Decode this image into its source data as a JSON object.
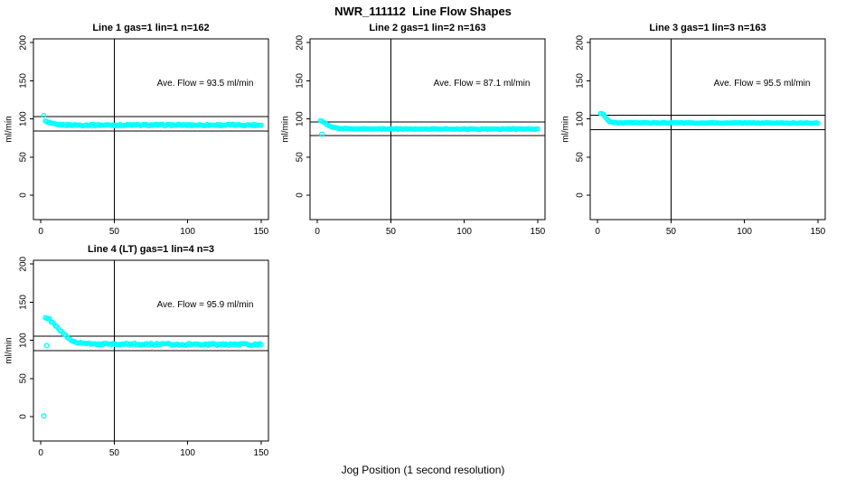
{
  "figure": {
    "title": "NWR_111112  Line Flow Shapes",
    "xlabel": "Jog Position (1 second resolution)"
  },
  "chart_data": [
    {
      "type": "scatter",
      "title": "Line 1 gas=1 lin=1 n=162",
      "line": 1,
      "gas": 1,
      "lin": 1,
      "n": 162,
      "annotation": "Ave. Flow =  93.5  ml/min",
      "ave_flow_ml_min": 93.5,
      "ylabel": "ml/min",
      "x_ticks": [
        0,
        50,
        100,
        150
      ],
      "y_ticks": [
        0,
        50,
        100,
        150,
        200
      ],
      "xlim": [
        -5,
        155
      ],
      "ylim": [
        -32,
        205
      ],
      "grid": false,
      "vline_x": 50,
      "hlines": [
        102.9,
        84.2
      ],
      "marker": "open-circle",
      "marker_color": "#00FFFF",
      "series_x_range": [
        2,
        150,
        1
      ],
      "series_profile": [
        [
          2,
          104
        ],
        [
          3,
          97
        ],
        [
          5,
          95
        ],
        [
          8,
          93.5
        ],
        [
          12,
          92.5
        ],
        [
          20,
          92
        ],
        [
          150,
          92
        ]
      ],
      "noise": 1.0,
      "outlier_points": []
    },
    {
      "type": "scatter",
      "title": "Line 2 gas=1 lin=2 n=163",
      "line": 2,
      "gas": 1,
      "lin": 2,
      "n": 163,
      "annotation": "Ave. Flow =  87.1  ml/min",
      "ave_flow_ml_min": 87.1,
      "ylabel": "ml/min",
      "x_ticks": [
        0,
        50,
        100,
        150
      ],
      "y_ticks": [
        0,
        50,
        100,
        150,
        200
      ],
      "xlim": [
        -5,
        155
      ],
      "ylim": [
        -32,
        205
      ],
      "grid": false,
      "vline_x": 50,
      "hlines": [
        95.8,
        78.4
      ],
      "marker": "open-circle",
      "marker_color": "#00FFFF",
      "series_x_range": [
        2,
        150,
        1
      ],
      "series_profile": [
        [
          2,
          97.5
        ],
        [
          4,
          96
        ],
        [
          6,
          93
        ],
        [
          9,
          90
        ],
        [
          12,
          88.5
        ],
        [
          16,
          87.5
        ],
        [
          25,
          87
        ],
        [
          150,
          86.7
        ]
      ],
      "noise": 0.5,
      "outlier_points": [
        [
          3,
          80
        ]
      ]
    },
    {
      "type": "scatter",
      "title": "Line 3 gas=1 lin=3 n=163",
      "line": 3,
      "gas": 1,
      "lin": 3,
      "n": 163,
      "annotation": "Ave. Flow =  95.5  ml/min",
      "ave_flow_ml_min": 95.5,
      "ylabel": "ml/min",
      "x_ticks": [
        0,
        50,
        100,
        150
      ],
      "y_ticks": [
        0,
        50,
        100,
        150,
        200
      ],
      "xlim": [
        -5,
        155
      ],
      "ylim": [
        -32,
        205
      ],
      "grid": false,
      "vline_x": 50,
      "hlines": [
        105.1,
        86.0
      ],
      "marker": "open-circle",
      "marker_color": "#00FFFF",
      "series_x_range": [
        2,
        150,
        1
      ],
      "series_profile": [
        [
          2,
          107
        ],
        [
          4,
          106.5
        ],
        [
          6,
          100.5
        ],
        [
          8,
          96.5
        ],
        [
          12,
          95
        ],
        [
          150,
          94.6
        ]
      ],
      "noise": 0.5,
      "outlier_points": []
    },
    {
      "type": "scatter",
      "title": "Line 4 (LT) gas=1 lin=4 n=3",
      "line": 4,
      "line_note": "LT",
      "gas": 1,
      "lin": 4,
      "n": 3,
      "annotation": "Ave. Flow =  95.9  ml/min",
      "ave_flow_ml_min": 95.9,
      "ylabel": "ml/min",
      "x_ticks": [
        0,
        50,
        100,
        150
      ],
      "y_ticks": [
        0,
        50,
        100,
        150,
        200
      ],
      "xlim": [
        -5,
        155
      ],
      "ylim": [
        -32,
        205
      ],
      "grid": false,
      "vline_x": 50,
      "hlines": [
        105.5,
        86.3
      ],
      "marker": "open-circle",
      "marker_color": "#00FFFF",
      "series_x_range": [
        3,
        150,
        1
      ],
      "series_profile": [
        [
          3,
          130
        ],
        [
          6,
          127
        ],
        [
          9,
          121
        ],
        [
          12,
          115
        ],
        [
          15,
          109
        ],
        [
          18,
          104
        ],
        [
          21,
          100
        ],
        [
          25,
          97.5
        ],
        [
          30,
          95.8
        ],
        [
          40,
          95
        ],
        [
          150,
          94.6
        ]
      ],
      "noise": 1.2,
      "outlier_points": [
        [
          4,
          93
        ],
        [
          2,
          1
        ]
      ]
    }
  ]
}
